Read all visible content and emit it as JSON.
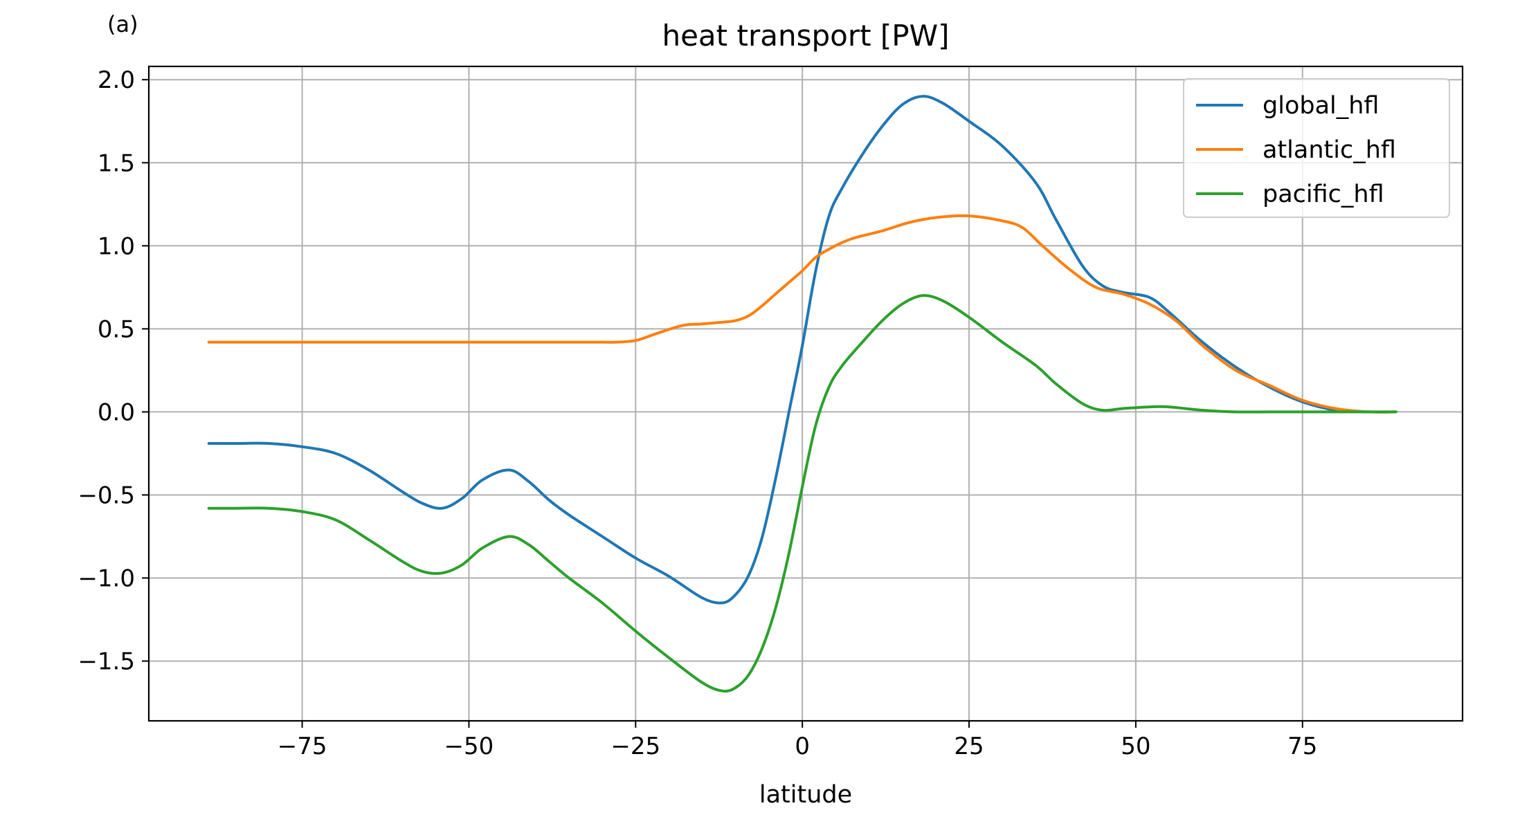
{
  "panel_label": "(a)",
  "colors": {
    "global_hfl": "#1f77b4",
    "atlantic_hfl": "#ff7f0e",
    "pacific_hfl": "#2ca02c",
    "grid": "#b0b0b0",
    "axes": "#000000"
  },
  "chart_data": {
    "type": "line",
    "title": "heat transport [PW]",
    "xlabel": "latitude",
    "ylabel": "",
    "xlim": [
      -98,
      99
    ],
    "ylim": [
      -1.86,
      2.08
    ],
    "xticks": [
      -75,
      -50,
      -25,
      0,
      25,
      50,
      75
    ],
    "xtick_labels": [
      "−75",
      "−50",
      "−25",
      "0",
      "25",
      "50",
      "75"
    ],
    "yticks": [
      2.0,
      1.5,
      1.0,
      0.5,
      0.0,
      -0.5,
      -1.0,
      -1.5
    ],
    "ytick_labels": [
      "2.0",
      "1.5",
      "1.0",
      "0.5",
      "0.0",
      "−0.5",
      "−1.0",
      "−1.5"
    ],
    "grid": true,
    "legend_position": "top-right",
    "series": [
      {
        "name": "global_hfl",
        "x": [
          -89,
          -85,
          -80,
          -75,
          -70,
          -65,
          -60,
          -57,
          -54,
          -51,
          -48,
          -44,
          -41,
          -38,
          -35,
          -30,
          -25,
          -20,
          -15,
          -12,
          -10,
          -8,
          -6,
          -4,
          -2,
          0,
          2,
          4,
          6,
          9,
          12,
          15,
          18,
          21,
          25,
          30,
          35,
          38,
          42,
          45,
          48,
          52,
          55,
          60,
          65,
          70,
          75,
          80,
          85,
          89
        ],
        "y": [
          -0.19,
          -0.19,
          -0.19,
          -0.21,
          -0.25,
          -0.35,
          -0.48,
          -0.55,
          -0.58,
          -0.52,
          -0.41,
          -0.35,
          -0.42,
          -0.53,
          -0.62,
          -0.75,
          -0.88,
          -0.99,
          -1.12,
          -1.15,
          -1.1,
          -0.98,
          -0.75,
          -0.4,
          0.0,
          0.4,
          0.85,
          1.18,
          1.35,
          1.55,
          1.72,
          1.85,
          1.9,
          1.86,
          1.75,
          1.6,
          1.38,
          1.16,
          0.88,
          0.76,
          0.72,
          0.69,
          0.6,
          0.42,
          0.27,
          0.15,
          0.06,
          0.01,
          0.0,
          0.0
        ]
      },
      {
        "name": "atlantic_hfl",
        "x": [
          -89,
          -85,
          -80,
          -75,
          -70,
          -65,
          -60,
          -55,
          -50,
          -45,
          -40,
          -35,
          -30,
          -28,
          -25,
          -22,
          -18,
          -15,
          -12,
          -10,
          -8,
          -6,
          -4,
          -2,
          0,
          2,
          4,
          6,
          8,
          12,
          16,
          20,
          25,
          30,
          33,
          36,
          40,
          44,
          48,
          52,
          56,
          60,
          65,
          70,
          75,
          80,
          85,
          89
        ],
        "y": [
          0.42,
          0.42,
          0.42,
          0.42,
          0.42,
          0.42,
          0.42,
          0.42,
          0.42,
          0.42,
          0.42,
          0.42,
          0.42,
          0.42,
          0.43,
          0.47,
          0.52,
          0.53,
          0.54,
          0.55,
          0.58,
          0.64,
          0.71,
          0.78,
          0.85,
          0.93,
          0.98,
          1.02,
          1.05,
          1.09,
          1.14,
          1.17,
          1.18,
          1.15,
          1.11,
          1.0,
          0.86,
          0.75,
          0.71,
          0.65,
          0.55,
          0.4,
          0.25,
          0.16,
          0.07,
          0.02,
          0.0,
          0.0
        ]
      },
      {
        "name": "pacific_hfl",
        "x": [
          -89,
          -85,
          -80,
          -75,
          -70,
          -65,
          -60,
          -57,
          -54,
          -51,
          -48,
          -44,
          -41,
          -38,
          -35,
          -30,
          -25,
          -20,
          -15,
          -12,
          -10,
          -8,
          -6,
          -4,
          -2,
          0,
          2,
          4,
          6,
          9,
          12,
          15,
          18,
          21,
          25,
          30,
          35,
          38,
          42,
          45,
          48,
          52,
          55,
          60,
          65,
          70,
          75,
          80,
          85,
          89
        ],
        "y": [
          -0.58,
          -0.58,
          -0.58,
          -0.6,
          -0.65,
          -0.77,
          -0.9,
          -0.96,
          -0.97,
          -0.92,
          -0.82,
          -0.75,
          -0.8,
          -0.9,
          -1.0,
          -1.15,
          -1.32,
          -1.48,
          -1.63,
          -1.68,
          -1.66,
          -1.58,
          -1.42,
          -1.18,
          -0.85,
          -0.45,
          -0.08,
          0.15,
          0.28,
          0.42,
          0.55,
          0.65,
          0.7,
          0.67,
          0.57,
          0.42,
          0.28,
          0.17,
          0.05,
          0.01,
          0.02,
          0.03,
          0.03,
          0.01,
          0.0,
          0.0,
          0.0,
          0.0,
          0.0,
          0.0
        ]
      }
    ]
  }
}
